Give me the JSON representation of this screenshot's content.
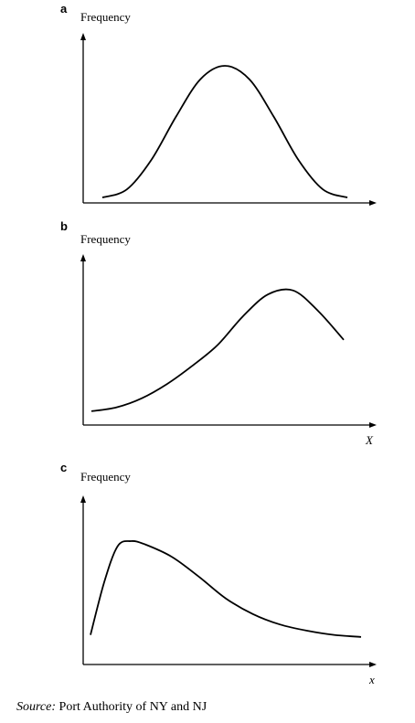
{
  "chart_data": [
    {
      "type": "line",
      "panel_label": "a",
      "ylabel": "Frequency",
      "xlabel": "",
      "curve": "symmetric-bell",
      "series": [
        {
          "x": [
            0.0,
            0.1,
            0.2,
            0.3,
            0.4,
            0.5,
            0.6,
            0.7,
            0.8,
            0.9,
            1.0
          ],
          "values": [
            0.02,
            0.08,
            0.3,
            0.62,
            0.9,
            1.0,
            0.9,
            0.62,
            0.3,
            0.08,
            0.02
          ]
        }
      ]
    },
    {
      "type": "line",
      "panel_label": "b",
      "ylabel": "Frequency",
      "xlabel": "X",
      "curve": "left-skewed",
      "series": [
        {
          "x": [
            0.0,
            0.1,
            0.2,
            0.3,
            0.4,
            0.5,
            0.6,
            0.7,
            0.8,
            0.9,
            1.0
          ],
          "values": [
            0.05,
            0.08,
            0.15,
            0.26,
            0.4,
            0.56,
            0.78,
            0.95,
            0.98,
            0.82,
            0.6
          ]
        }
      ]
    },
    {
      "type": "line",
      "panel_label": "c",
      "ylabel": "Frequency",
      "xlabel": "x",
      "curve": "right-skewed",
      "series": [
        {
          "x": [
            0.0,
            0.05,
            0.1,
            0.15,
            0.2,
            0.3,
            0.4,
            0.5,
            0.6,
            0.7,
            0.8,
            0.9,
            1.0
          ],
          "values": [
            0.1,
            0.6,
            0.95,
            1.0,
            0.97,
            0.85,
            0.66,
            0.45,
            0.3,
            0.2,
            0.14,
            0.1,
            0.08
          ]
        }
      ]
    }
  ],
  "source": {
    "label": "Source:",
    "text": " Port Authority of NY and NJ"
  }
}
